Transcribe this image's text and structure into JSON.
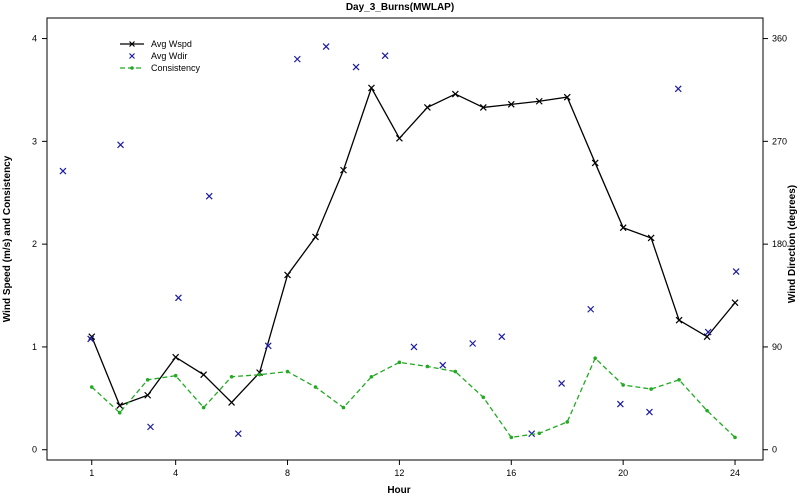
{
  "chart_data": {
    "type": "line",
    "title": "Day_3_Burns(MWLAP)",
    "xlabel": "Hour",
    "ylabel": "Wind Speed (m/s) and Consistency",
    "y2label": "Wind Direction (degrees)",
    "xlim": [
      -0.6,
      25
    ],
    "ylim": [
      -0.1,
      4.2
    ],
    "y2lim": [
      -9,
      378
    ],
    "xticks": [
      1,
      4,
      8,
      12,
      16,
      20,
      24
    ],
    "yticks": [
      0,
      1,
      2,
      3,
      4
    ],
    "y2ticks": [
      0,
      90,
      180,
      270,
      360
    ],
    "grid": false,
    "legend_position": "top-left",
    "series": [
      {
        "name": "Avg Wspd",
        "axis": "left",
        "style": "solid-line-x-markers",
        "color": "#000000",
        "x": [
          1,
          2,
          3,
          4,
          5,
          6,
          7,
          8,
          9,
          10,
          11,
          12,
          13,
          14,
          15,
          16,
          17,
          18,
          19,
          20,
          21,
          22,
          23,
          24
        ],
        "y": [
          1.1,
          0.43,
          0.53,
          0.9,
          0.73,
          0.46,
          0.75,
          1.7,
          2.07,
          2.72,
          3.52,
          3.03,
          3.33,
          3.46,
          3.33,
          3.36,
          3.39,
          3.43,
          2.79,
          2.16,
          2.06,
          1.26,
          1.1,
          1.43
        ]
      },
      {
        "name": "Avg Wdir",
        "axis": "right",
        "style": "x-markers-only",
        "color": "#1a1aa6",
        "x": [
          -0.03,
          0.96,
          2.03,
          3.1,
          4.1,
          5.2,
          6.24,
          7.31,
          8.35,
          9.38,
          10.45,
          11.49,
          12.52,
          13.55,
          14.62,
          15.66,
          16.73,
          17.8,
          18.84,
          19.9,
          20.94,
          21.97,
          23.04,
          24.04
        ],
        "y": [
          244,
          97,
          267,
          20,
          133,
          222,
          14,
          91,
          342,
          353,
          335,
          345,
          90,
          74,
          93,
          99,
          14,
          58,
          123,
          40,
          33,
          316,
          103,
          156
        ]
      },
      {
        "name": "Consistency",
        "axis": "left",
        "style": "dashed-line-dot-markers",
        "color": "#22aa22",
        "x": [
          1,
          2,
          3,
          4,
          5,
          6,
          7,
          8,
          9,
          10,
          11,
          12,
          13,
          14,
          15,
          16,
          17,
          18,
          19,
          20,
          21,
          22,
          23,
          24
        ],
        "y": [
          0.61,
          0.36,
          0.68,
          0.72,
          0.41,
          0.71,
          0.73,
          0.76,
          0.61,
          0.41,
          0.71,
          0.85,
          0.81,
          0.76,
          0.51,
          0.12,
          0.16,
          0.27,
          0.89,
          0.63,
          0.59,
          0.68,
          0.38,
          0.12
        ]
      }
    ]
  }
}
